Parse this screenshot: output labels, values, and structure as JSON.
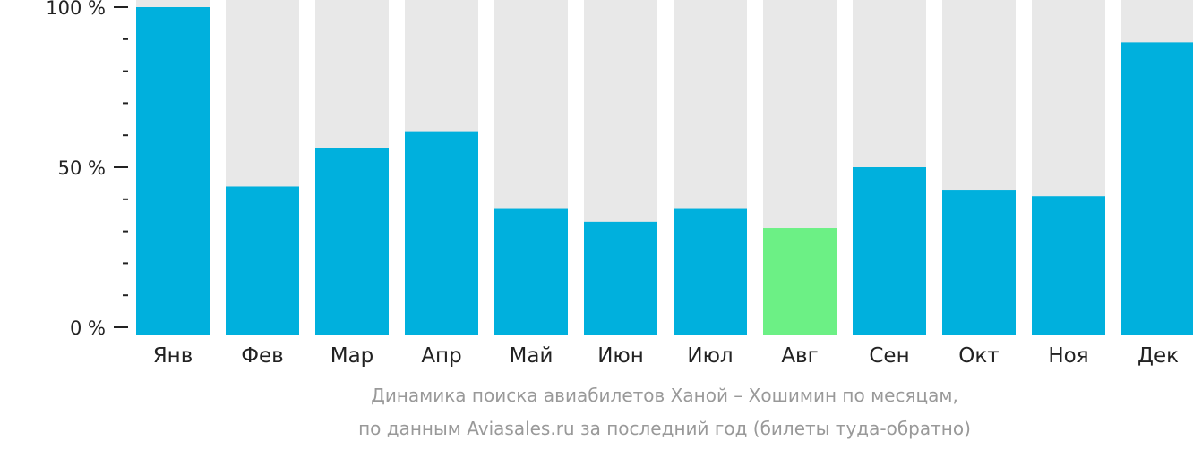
{
  "chart_data": {
    "type": "bar",
    "categories": [
      "Янв",
      "Фев",
      "Мар",
      "Апр",
      "Май",
      "Июн",
      "Июл",
      "Авг",
      "Сен",
      "Окт",
      "Ноя",
      "Дек"
    ],
    "values": [
      100,
      44,
      56,
      61,
      37,
      33,
      37,
      31,
      50,
      43,
      41,
      89
    ],
    "highlight_index": 7,
    "ylim": [
      0,
      100
    ],
    "y_ticks": [
      {
        "value": 0,
        "label": "0 %"
      },
      {
        "value": 50,
        "label": "50 %"
      },
      {
        "value": 100,
        "label": "100 %"
      }
    ],
    "minor_tick_step": 10,
    "colors": {
      "bar": "#00b0dd",
      "highlight": "#6cf085",
      "background_bar": "#e8e8e8",
      "axis": "#222222"
    }
  },
  "caption": {
    "line1": "Динамика поиска авиабилетов Ханой – Хошимин по месяцам,",
    "line2": "по данным Aviasales.ru за последний год (билеты туда-обратно)"
  }
}
